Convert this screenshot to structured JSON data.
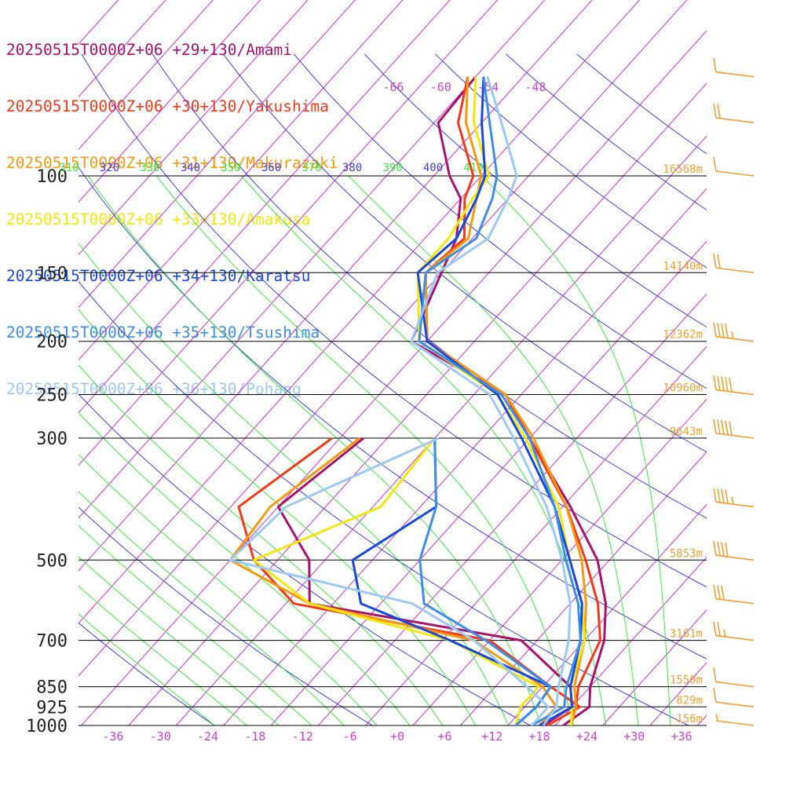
{
  "chart_data": {
    "type": "line",
    "subtype": "skew-t log-p sounding",
    "title": "",
    "xlabel": "",
    "ylabel": "",
    "pressure_levels": [
      100,
      150,
      200,
      250,
      300,
      500,
      700,
      850,
      925,
      1000
    ],
    "pressure_labels": [
      "100",
      "150",
      "200",
      "250",
      "300",
      "500",
      "700",
      "850",
      "925",
      "1000"
    ],
    "heights": [
      {
        "p": 100,
        "label": "16568m"
      },
      {
        "p": 150,
        "label": "14140m"
      },
      {
        "p": 200,
        "label": "12362m"
      },
      {
        "p": 250,
        "label": "10960m"
      },
      {
        "p": 300,
        "label": "9643m"
      },
      {
        "p": 500,
        "label": "5853m"
      },
      {
        "p": 700,
        "label": "3161m"
      },
      {
        "p": 850,
        "label": "1550m"
      },
      {
        "p": 925,
        "label": "829m"
      },
      {
        "p": 1000,
        "label": "156m"
      }
    ],
    "temp_ticks": [
      {
        "t": -36,
        "label": "-36"
      },
      {
        "t": -30,
        "label": "-30"
      },
      {
        "t": -24,
        "label": "-24"
      },
      {
        "t": -18,
        "label": "-18"
      },
      {
        "t": -12,
        "label": "-12"
      },
      {
        "t": -6,
        "label": "-6"
      },
      {
        "t": 0,
        "label": "+0"
      },
      {
        "t": 6,
        "label": "+6"
      },
      {
        "t": 12,
        "label": "+12"
      },
      {
        "t": 18,
        "label": "+18"
      },
      {
        "t": 24,
        "label": "+24"
      },
      {
        "t": 30,
        "label": "+30"
      },
      {
        "t": 36,
        "label": "+36"
      }
    ],
    "upper_temp_ticks": [
      {
        "t": -66,
        "label": "-66"
      },
      {
        "t": -60,
        "label": "-60"
      },
      {
        "t": -54,
        "label": "-54"
      },
      {
        "t": -48,
        "label": "-48"
      }
    ],
    "theta_labels": [
      "310",
      "320",
      "330",
      "340",
      "350",
      "360",
      "370",
      "380",
      "390",
      "400",
      "410"
    ],
    "theta_label_colors": [
      "#3ee83e",
      "#4040dd",
      "#3ee83e",
      "#4040dd",
      "#3ee83e",
      "#4040dd",
      "#3ee83e",
      "#4040dd",
      "#3ee83e",
      "#4040dd",
      "#3ee83e"
    ],
    "colors": {
      "isotherm": "#cc33cc",
      "dry_adiabat": "#4040dd",
      "moist_adiabat": "#3ee83e",
      "isobar": "#000000",
      "height": "#f0a030",
      "wind_barb": "#f0a030",
      "axis_text": "#cc44cc"
    },
    "series": [
      {
        "name": "20250515T0000Z+06 +29+130/Amami",
        "color": "#a8126c",
        "temperature": [
          [
            1000,
            21
          ],
          [
            925,
            22.2
          ],
          [
            850,
            20
          ],
          [
            700,
            16.5
          ],
          [
            600,
            12.5
          ],
          [
            500,
            6.5
          ],
          [
            400,
            -3
          ],
          [
            300,
            -16
          ],
          [
            250,
            -24
          ],
          [
            200,
            -42
          ],
          [
            150,
            -46
          ],
          [
            130,
            -48
          ],
          [
            110,
            -52
          ],
          [
            100,
            -56
          ],
          [
            80,
            -63.5
          ],
          [
            66,
            -64
          ]
        ],
        "dewpoint": [
          [
            1000,
            18.5
          ],
          [
            925,
            20
          ],
          [
            850,
            17.5
          ],
          [
            700,
            6
          ],
          [
            600,
            -25
          ],
          [
            500,
            -30
          ],
          [
            400,
            -40
          ],
          [
            300,
            -37
          ]
        ]
      },
      {
        "name": "20250515T0000Z+06 +30+130/Yakushima",
        "color": "#f23a1a",
        "temperature": [
          [
            1000,
            22
          ],
          [
            925,
            20.5
          ],
          [
            850,
            18.5
          ],
          [
            700,
            16
          ],
          [
            600,
            11.5
          ],
          [
            500,
            5
          ],
          [
            400,
            -3.5
          ],
          [
            300,
            -16
          ],
          [
            250,
            -24
          ],
          [
            200,
            -40
          ],
          [
            150,
            -48
          ],
          [
            130,
            -47
          ],
          [
            110,
            -51.5
          ],
          [
            100,
            -53
          ],
          [
            80,
            -61
          ],
          [
            66,
            -65
          ]
        ],
        "dewpoint": [
          [
            1000,
            19
          ],
          [
            925,
            21
          ],
          [
            850,
            15
          ],
          [
            700,
            2
          ],
          [
            600,
            -27
          ],
          [
            500,
            -37
          ],
          [
            400,
            -45
          ],
          [
            300,
            -41
          ]
        ]
      },
      {
        "name": "20250515T0000Z+06 +31+130/Makurazaki",
        "color": "#f59a10",
        "temperature": [
          [
            1000,
            22
          ],
          [
            925,
            20.5
          ],
          [
            850,
            18
          ],
          [
            700,
            14
          ],
          [
            600,
            10
          ],
          [
            500,
            4.5
          ],
          [
            400,
            -3.5
          ],
          [
            300,
            -15.5
          ],
          [
            250,
            -24
          ],
          [
            200,
            -40
          ],
          [
            150,
            -48
          ],
          [
            130,
            -46.5
          ],
          [
            110,
            -50
          ],
          [
            100,
            -52
          ],
          [
            80,
            -60
          ],
          [
            66,
            -65
          ]
        ],
        "dewpoint": [
          [
            1000,
            18
          ],
          [
            925,
            18
          ],
          [
            850,
            14
          ],
          [
            700,
            0
          ],
          [
            600,
            -25
          ],
          [
            500,
            -40
          ],
          [
            400,
            -41
          ],
          [
            300,
            -37.5
          ]
        ]
      },
      {
        "name": "20250515T0000Z+06 +33+130/Amakusa",
        "color": "#f2e80a",
        "temperature": [
          [
            1000,
            22
          ],
          [
            925,
            20
          ],
          [
            850,
            17.5
          ],
          [
            700,
            14
          ],
          [
            600,
            9.5
          ],
          [
            500,
            3
          ],
          [
            400,
            -4.5
          ],
          [
            300,
            -16.5
          ],
          [
            250,
            -25
          ],
          [
            200,
            -41
          ],
          [
            150,
            -49
          ],
          [
            130,
            -49
          ],
          [
            110,
            -50.5
          ],
          [
            100,
            -51
          ],
          [
            80,
            -59
          ],
          [
            66,
            -64
          ]
        ],
        "dewpoint": [
          [
            1000,
            15
          ],
          [
            925,
            13.5
          ],
          [
            850,
            13.5
          ],
          [
            700,
            -3
          ],
          [
            600,
            -25
          ],
          [
            500,
            -37
          ],
          [
            400,
            -27
          ],
          [
            300,
            -28
          ]
        ]
      },
      {
        "name": "20250515T0000Z+06 +34+130/Karatsu",
        "color": "#1848de",
        "temperature": [
          [
            1000,
            18
          ],
          [
            925,
            20
          ],
          [
            850,
            17.5
          ],
          [
            700,
            13.5
          ],
          [
            600,
            9.5
          ],
          [
            500,
            3
          ],
          [
            400,
            -5
          ],
          [
            300,
            -17
          ],
          [
            250,
            -25
          ],
          [
            200,
            -40
          ],
          [
            150,
            -49
          ],
          [
            130,
            -48
          ],
          [
            110,
            -50
          ],
          [
            100,
            -51.5
          ],
          [
            80,
            -58
          ],
          [
            66,
            -63
          ]
        ],
        "dewpoint": [
          [
            1000,
            15
          ],
          [
            925,
            15.5
          ],
          [
            850,
            15
          ],
          [
            700,
            -3
          ],
          [
            600,
            -18.5
          ],
          [
            500,
            -24.5
          ],
          [
            400,
            -20
          ],
          [
            300,
            -28
          ]
        ]
      },
      {
        "name": "20250515T0000Z+06 +35+130/Tsushima",
        "color": "#3c8ee6",
        "temperature": [
          [
            1000,
            17
          ],
          [
            925,
            19
          ],
          [
            850,
            17
          ],
          [
            700,
            13.5
          ],
          [
            600,
            9
          ],
          [
            500,
            2.5
          ],
          [
            400,
            -5
          ],
          [
            300,
            -16
          ],
          [
            250,
            -24.5
          ],
          [
            200,
            -41
          ],
          [
            150,
            -48
          ],
          [
            130,
            -45.5
          ],
          [
            110,
            -48
          ],
          [
            100,
            -50
          ],
          [
            80,
            -57
          ],
          [
            66,
            -63
          ]
        ],
        "dewpoint": [
          [
            1000,
            15
          ],
          [
            925,
            15.5
          ],
          [
            850,
            15
          ],
          [
            700,
            1.5
          ],
          [
            600,
            -10.5
          ],
          [
            500,
            -16
          ],
          [
            400,
            -20
          ],
          [
            300,
            -28
          ]
        ]
      },
      {
        "name": "20250515T0000Z+06 +36+130/Pohang",
        "color": "#9ec8f4",
        "temperature": [
          [
            1000,
            18.5
          ],
          [
            925,
            18
          ],
          [
            850,
            16
          ],
          [
            700,
            12
          ],
          [
            600,
            8
          ],
          [
            500,
            2
          ],
          [
            400,
            -6
          ],
          [
            300,
            -18
          ],
          [
            250,
            -26
          ],
          [
            200,
            -42
          ],
          [
            150,
            -46.5
          ],
          [
            130,
            -44
          ],
          [
            110,
            -46
          ],
          [
            100,
            -47.5
          ],
          [
            80,
            -55.5
          ],
          [
            66,
            -62.5
          ]
        ],
        "dewpoint": [
          [
            1000,
            17
          ],
          [
            925,
            17
          ],
          [
            850,
            12
          ],
          [
            700,
            0
          ],
          [
            600,
            -12
          ],
          [
            500,
            -40
          ],
          [
            400,
            -39
          ],
          [
            300,
            -27.5
          ]
        ]
      }
    ],
    "wind_barbs": [
      {
        "p": 1000,
        "speed_kt": 5
      },
      {
        "p": 925,
        "speed_kt": 10
      },
      {
        "p": 850,
        "speed_kt": 10
      },
      {
        "p": 700,
        "speed_kt": 25
      },
      {
        "p": 600,
        "speed_kt": 30
      },
      {
        "p": 500,
        "speed_kt": 40
      },
      {
        "p": 400,
        "speed_kt": 45
      },
      {
        "p": 300,
        "speed_kt": 50
      },
      {
        "p": 250,
        "speed_kt": 50
      },
      {
        "p": 200,
        "speed_kt": 45
      },
      {
        "p": 150,
        "speed_kt": 20
      },
      {
        "p": 100,
        "speed_kt": 10
      },
      {
        "p": 80,
        "speed_kt": 20
      },
      {
        "p": 66,
        "speed_kt": 10
      }
    ]
  }
}
